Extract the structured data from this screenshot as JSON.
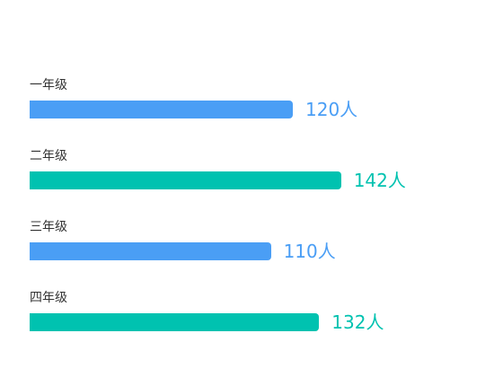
{
  "chart_data": {
    "type": "bar",
    "orientation": "horizontal",
    "categories": [
      "一年级",
      "二年级",
      "三年级",
      "四年级"
    ],
    "values": [
      120,
      142,
      110,
      132
    ],
    "value_labels": [
      "120人",
      "142人",
      "110人",
      "132人"
    ],
    "unit": "人",
    "bar_colors": [
      "#4a9ef5",
      "#00c2b0",
      "#4a9ef5",
      "#00c2b0"
    ],
    "title": "",
    "xlabel": "",
    "ylabel": "",
    "grid": false,
    "legend": "none"
  }
}
